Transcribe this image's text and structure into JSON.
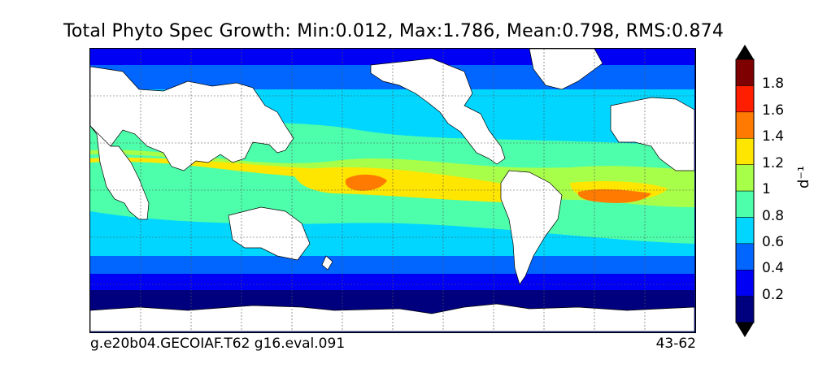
{
  "title": "Total Phyto Spec Growth: Min:0.012, Max:1.786, Mean:0.798, RMS:0.874",
  "footer": {
    "case_name": "g.e20b04.GECOIAF.T62 g16.eval.091",
    "years": "43-62"
  },
  "colorbar": {
    "units": "d⁻¹",
    "levels": [
      "0.2",
      "0.4",
      "0.6",
      "0.8",
      "1",
      "1.2",
      "1.4",
      "1.6",
      "1.8"
    ],
    "colors": [
      "#00007f",
      "#0000f5",
      "#0066ff",
      "#00d6ff",
      "#4dffaa",
      "#a8ff4a",
      "#ffe600",
      "#ff7a00",
      "#ff1e00",
      "#7f0000"
    ],
    "extend": "both"
  },
  "map": {
    "projection": "cylindrical",
    "grid": true,
    "land_color": "#ffffff"
  }
}
